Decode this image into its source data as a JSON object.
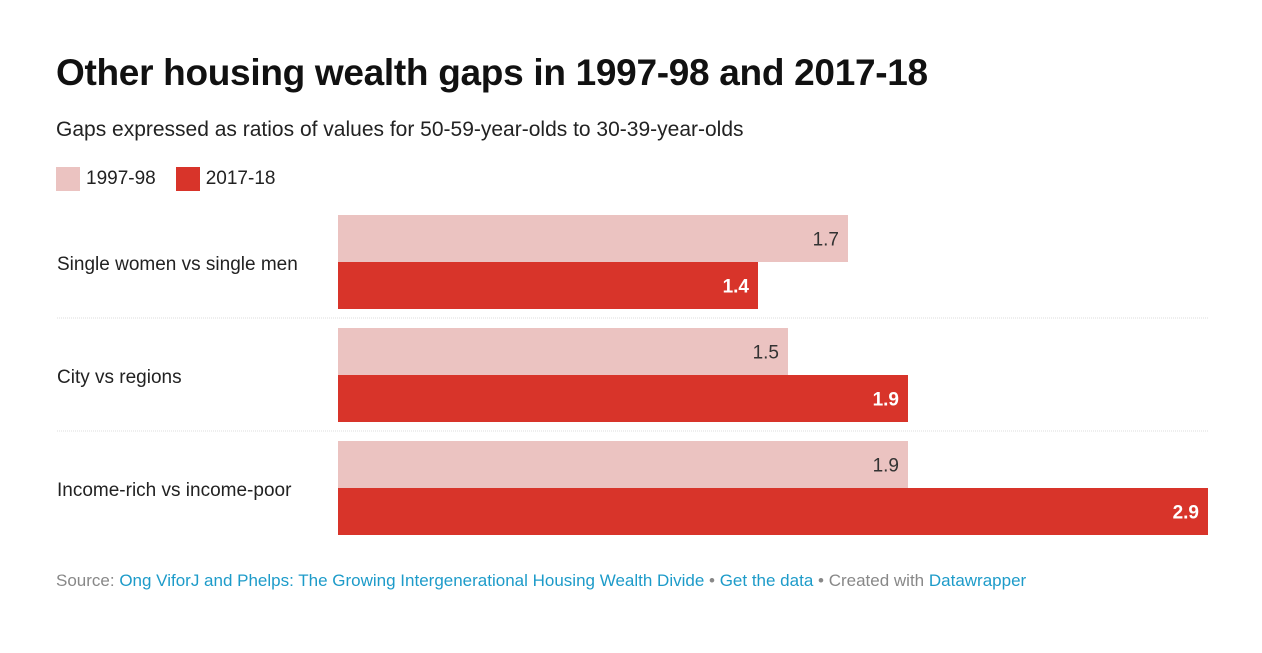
{
  "chart_data": {
    "type": "bar",
    "orientation": "horizontal",
    "title": "Other housing wealth gaps in 1997-98 and 2017-18",
    "subtitle": "Gaps expressed as ratios of values for 50-59-year-olds to 30-39-year-olds",
    "categories": [
      "Single women vs single men",
      "City vs regions",
      "Income-rich vs income-poor"
    ],
    "series": [
      {
        "name": "1997-98",
        "color": "#ebc3c1",
        "values": [
          1.7,
          1.5,
          1.9
        ]
      },
      {
        "name": "2017-18",
        "color": "#d8342a",
        "values": [
          1.4,
          1.9,
          2.9
        ]
      }
    ],
    "xlim": [
      0,
      2.9
    ],
    "legend": "top-left",
    "grid": false
  },
  "footer": {
    "source_label": "Source:",
    "source_link": "Ong ViforJ and Phelps: The Growing Intergenerational Housing Wealth Divide",
    "sep": "•",
    "get_data": "Get the data",
    "created": "Created with",
    "tool": "Datawrapper"
  }
}
